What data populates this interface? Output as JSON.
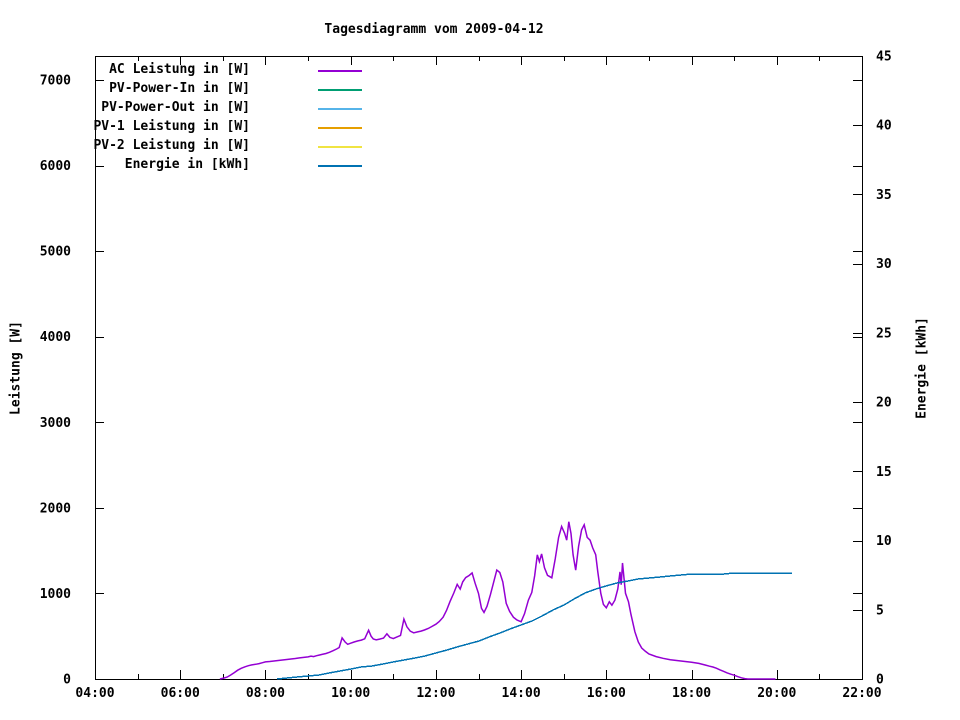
{
  "chart_data": {
    "type": "line",
    "title": "Tagesdiagramm vom 2009-04-12",
    "x_axis": {
      "label": "",
      "range_hours": [
        4,
        22
      ],
      "tick_labels": [
        "04:00",
        "06:00",
        "08:00",
        "10:00",
        "12:00",
        "14:00",
        "16:00",
        "18:00",
        "20:00",
        "22:00"
      ],
      "major_tick_every_hours": 2,
      "minor_tick_every_hours": 1,
      "ticks_mirrored_on_top": true
    },
    "y_left": {
      "label": "Leistung [W]",
      "range": [
        0,
        7280
      ],
      "ticks": [
        0,
        1000,
        2000,
        3000,
        4000,
        5000,
        6000,
        7000
      ],
      "ticks_mirrored_on_right": true
    },
    "y_right": {
      "label": "Energie [kWh]",
      "range": [
        0,
        45
      ],
      "ticks": [
        0,
        5,
        10,
        15,
        20,
        25,
        30,
        35,
        40,
        45
      ]
    },
    "grid": false,
    "legend_position": "top-left-inside",
    "legend": [
      {
        "label": "AC Leistung in [W]",
        "color": "#9400d3"
      },
      {
        "label": "PV-Power-In in [W]",
        "color": "#009e73"
      },
      {
        "label": "PV-Power-Out in [W]",
        "color": "#56b4e9"
      },
      {
        "label": "PV-1 Leistung in [W]",
        "color": "#e69f00"
      },
      {
        "label": "PV-2 Leistung in [W]",
        "color": "#f0e442"
      },
      {
        "label": "Energie in [kWh]",
        "color": "#0072b2"
      }
    ],
    "series": [
      {
        "name": "AC Leistung in [W]",
        "color": "#9400d3",
        "axis": "left",
        "unit": "W",
        "visible": true,
        "points": [
          [
            6.93,
            0
          ],
          [
            7.02,
            10
          ],
          [
            7.1,
            22
          ],
          [
            7.18,
            45
          ],
          [
            7.27,
            75
          ],
          [
            7.35,
            103
          ],
          [
            7.43,
            125
          ],
          [
            7.52,
            142
          ],
          [
            7.6,
            155
          ],
          [
            7.68,
            165
          ],
          [
            7.77,
            172
          ],
          [
            7.85,
            180
          ],
          [
            7.93,
            190
          ],
          [
            8.0,
            200
          ],
          [
            8.1,
            205
          ],
          [
            8.2,
            210
          ],
          [
            8.3,
            216
          ],
          [
            8.4,
            222
          ],
          [
            8.5,
            228
          ],
          [
            8.6,
            234
          ],
          [
            8.7,
            240
          ],
          [
            8.8,
            246
          ],
          [
            8.9,
            252
          ],
          [
            9.0,
            258
          ],
          [
            9.07,
            268
          ],
          [
            9.13,
            262
          ],
          [
            9.2,
            272
          ],
          [
            9.27,
            280
          ],
          [
            9.33,
            288
          ],
          [
            9.42,
            298
          ],
          [
            9.5,
            312
          ],
          [
            9.58,
            330
          ],
          [
            9.67,
            350
          ],
          [
            9.73,
            368
          ],
          [
            9.8,
            480
          ],
          [
            9.87,
            432
          ],
          [
            9.93,
            405
          ],
          [
            10.0,
            418
          ],
          [
            10.08,
            432
          ],
          [
            10.17,
            445
          ],
          [
            10.25,
            455
          ],
          [
            10.33,
            470
          ],
          [
            10.42,
            570
          ],
          [
            10.48,
            500
          ],
          [
            10.53,
            468
          ],
          [
            10.6,
            458
          ],
          [
            10.68,
            466
          ],
          [
            10.77,
            478
          ],
          [
            10.85,
            528
          ],
          [
            10.92,
            486
          ],
          [
            11.0,
            472
          ],
          [
            11.08,
            490
          ],
          [
            11.17,
            508
          ],
          [
            11.25,
            700
          ],
          [
            11.32,
            610
          ],
          [
            11.4,
            558
          ],
          [
            11.48,
            540
          ],
          [
            11.57,
            550
          ],
          [
            11.65,
            560
          ],
          [
            11.73,
            572
          ],
          [
            11.82,
            590
          ],
          [
            11.9,
            612
          ],
          [
            12.0,
            640
          ],
          [
            12.08,
            672
          ],
          [
            12.17,
            722
          ],
          [
            12.25,
            800
          ],
          [
            12.33,
            905
          ],
          [
            12.42,
            1005
          ],
          [
            12.5,
            1105
          ],
          [
            12.57,
            1050
          ],
          [
            12.63,
            1135
          ],
          [
            12.7,
            1185
          ],
          [
            12.78,
            1210
          ],
          [
            12.85,
            1240
          ],
          [
            12.92,
            1120
          ],
          [
            13.0,
            1000
          ],
          [
            13.07,
            825
          ],
          [
            13.13,
            778
          ],
          [
            13.2,
            850
          ],
          [
            13.28,
            985
          ],
          [
            13.35,
            1120
          ],
          [
            13.43,
            1272
          ],
          [
            13.5,
            1245
          ],
          [
            13.57,
            1135
          ],
          [
            13.65,
            885
          ],
          [
            13.73,
            790
          ],
          [
            13.82,
            722
          ],
          [
            13.9,
            690
          ],
          [
            14.0,
            668
          ],
          [
            14.08,
            762
          ],
          [
            14.17,
            922
          ],
          [
            14.25,
            1012
          ],
          [
            14.32,
            1210
          ],
          [
            14.38,
            1450
          ],
          [
            14.43,
            1372
          ],
          [
            14.48,
            1462
          ],
          [
            14.55,
            1300
          ],
          [
            14.62,
            1212
          ],
          [
            14.72,
            1182
          ],
          [
            14.8,
            1402
          ],
          [
            14.88,
            1655
          ],
          [
            14.95,
            1782
          ],
          [
            15.02,
            1702
          ],
          [
            15.07,
            1622
          ],
          [
            15.12,
            1838
          ],
          [
            15.17,
            1700
          ],
          [
            15.22,
            1450
          ],
          [
            15.28,
            1272
          ],
          [
            15.35,
            1552
          ],
          [
            15.42,
            1742
          ],
          [
            15.48,
            1802
          ],
          [
            15.55,
            1655
          ],
          [
            15.62,
            1622
          ],
          [
            15.68,
            1532
          ],
          [
            15.75,
            1452
          ],
          [
            15.8,
            1252
          ],
          [
            15.87,
            1002
          ],
          [
            15.93,
            872
          ],
          [
            16.0,
            832
          ],
          [
            16.07,
            902
          ],
          [
            16.13,
            862
          ],
          [
            16.2,
            922
          ],
          [
            16.27,
            1052
          ],
          [
            16.32,
            1252
          ],
          [
            16.35,
            1102
          ],
          [
            16.38,
            1355
          ],
          [
            16.45,
            1002
          ],
          [
            16.52,
            902
          ],
          [
            16.58,
            752
          ],
          [
            16.67,
            552
          ],
          [
            16.75,
            432
          ],
          [
            16.83,
            362
          ],
          [
            16.92,
            322
          ],
          [
            17.0,
            292
          ],
          [
            17.17,
            262
          ],
          [
            17.33,
            242
          ],
          [
            17.5,
            226
          ],
          [
            17.75,
            210
          ],
          [
            18.0,
            196
          ],
          [
            18.17,
            182
          ],
          [
            18.33,
            162
          ],
          [
            18.42,
            150
          ],
          [
            18.5,
            140
          ],
          [
            18.58,
            126
          ],
          [
            18.67,
            106
          ],
          [
            18.75,
            90
          ],
          [
            18.83,
            72
          ],
          [
            18.92,
            56
          ],
          [
            19.0,
            44
          ],
          [
            19.08,
            28
          ],
          [
            19.17,
            14
          ],
          [
            19.25,
            5
          ],
          [
            19.32,
            0
          ],
          [
            19.97,
            0
          ]
        ]
      },
      {
        "name": "Energie in [kWh]",
        "color": "#0072b2",
        "axis": "right",
        "unit": "kWh",
        "visible": true,
        "points": [
          [
            8.28,
            0
          ],
          [
            8.5,
            0.06
          ],
          [
            8.75,
            0.13
          ],
          [
            9.0,
            0.22
          ],
          [
            9.25,
            0.32
          ],
          [
            9.5,
            0.44
          ],
          [
            9.75,
            0.56
          ],
          [
            10.0,
            0.7
          ],
          [
            10.25,
            0.84
          ],
          [
            10.5,
            0.97
          ],
          [
            10.75,
            1.1
          ],
          [
            11.0,
            1.23
          ],
          [
            11.25,
            1.36
          ],
          [
            11.5,
            1.5
          ],
          [
            11.75,
            1.66
          ],
          [
            12.0,
            1.85
          ],
          [
            12.25,
            2.08
          ],
          [
            12.5,
            2.32
          ],
          [
            12.75,
            2.55
          ],
          [
            13.0,
            2.78
          ],
          [
            13.25,
            3.02
          ],
          [
            13.5,
            3.3
          ],
          [
            13.75,
            3.58
          ],
          [
            14.0,
            3.88
          ],
          [
            14.25,
            4.2
          ],
          [
            14.5,
            4.55
          ],
          [
            14.75,
            4.95
          ],
          [
            15.0,
            5.38
          ],
          [
            15.25,
            5.8
          ],
          [
            15.5,
            6.18
          ],
          [
            15.75,
            6.5
          ],
          [
            16.0,
            6.75
          ],
          [
            16.25,
            6.95
          ],
          [
            16.5,
            7.1
          ],
          [
            16.75,
            7.22
          ],
          [
            17.0,
            7.32
          ],
          [
            17.25,
            7.4
          ],
          [
            17.5,
            7.47
          ],
          [
            17.75,
            7.52
          ],
          [
            18.0,
            7.56
          ],
          [
            18.25,
            7.59
          ],
          [
            18.5,
            7.61
          ],
          [
            18.75,
            7.62
          ],
          [
            19.0,
            7.63
          ],
          [
            19.33,
            7.64
          ],
          [
            19.67,
            7.65
          ],
          [
            20.0,
            7.66
          ],
          [
            20.35,
            7.66
          ]
        ]
      },
      {
        "name": "PV-Power-In in [W]",
        "color": "#009e73",
        "axis": "left",
        "unit": "W",
        "visible": false,
        "points": []
      },
      {
        "name": "PV-Power-Out in [W]",
        "color": "#56b4e9",
        "axis": "left",
        "unit": "W",
        "visible": false,
        "points": []
      },
      {
        "name": "PV-1 Leistung in [W]",
        "color": "#e69f00",
        "axis": "left",
        "unit": "W",
        "visible": false,
        "points": []
      },
      {
        "name": "PV-2 Leistung in [W]",
        "color": "#f0e442",
        "axis": "left",
        "unit": "W",
        "visible": false,
        "points": []
      }
    ]
  }
}
